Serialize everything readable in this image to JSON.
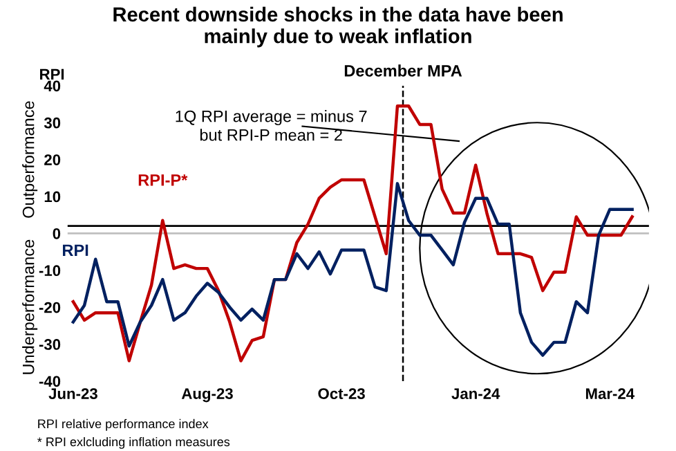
{
  "chart_data": {
    "type": "line",
    "title": "Recent downside shocks in the data have been\nmainly due to weak inflation",
    "ylabel": "RPI",
    "categories": [
      "Jun-23",
      null,
      null,
      null,
      null,
      null,
      null,
      null,
      null,
      null,
      null,
      null,
      "Aug-23",
      null,
      null,
      null,
      null,
      null,
      null,
      null,
      null,
      null,
      null,
      null,
      "Oct-23",
      null,
      null,
      null,
      null,
      null,
      null,
      null,
      null,
      null,
      null,
      null,
      "Jan-24",
      null,
      null,
      null,
      null,
      null,
      null,
      null,
      null,
      null,
      null,
      null,
      "Mar-24",
      null,
      null
    ],
    "series": [
      {
        "name": "RPI-P*",
        "color": "#c00000",
        "values": [
          -18.5,
          -23.5,
          -21.5,
          -21.5,
          -21.5,
          -34.5,
          -24,
          -14,
          3.5,
          -9.5,
          -8.5,
          -9.5,
          -9.5,
          -15.5,
          -24,
          -34.5,
          -29,
          -28,
          -12.5,
          -12.5,
          -2.5,
          2.5,
          9.5,
          12.5,
          14.5,
          14.5,
          14.5,
          4.5,
          -5.5,
          34.5,
          34.5,
          29.5,
          29.5,
          12,
          5.5,
          5.5,
          18.5,
          5.5,
          -5.5,
          -5.5,
          -5.5,
          -6.5,
          -15.5,
          -10.5,
          -10.5,
          4.5,
          -0.5,
          -0.5,
          -0.5,
          -0.5,
          4.5
        ]
      },
      {
        "name": "RPI",
        "color": "#002060",
        "values": [
          -24,
          -19.5,
          -7,
          -18.5,
          -18.5,
          -30.5,
          -24,
          -19.5,
          -12.5,
          -23.5,
          -21.5,
          -17,
          -13.5,
          -16,
          -20,
          -23.5,
          -20.5,
          -23.5,
          -12.5,
          -12.5,
          -5.5,
          -9.5,
          -5,
          -11,
          -4.5,
          -4.5,
          -4.5,
          -14.5,
          -15.5,
          13.5,
          3.5,
          -0.5,
          -0.5,
          -4.5,
          -8.5,
          3,
          9.5,
          9.5,
          2.5,
          2.5,
          -21.5,
          -29.5,
          -33,
          -29.5,
          -29.5,
          -18.5,
          -21.5,
          -0.5,
          6.5,
          6.5,
          6.5
        ]
      }
    ],
    "ylim": [
      -40,
      40
    ],
    "yticks": [
      -40,
      -30,
      -20,
      -10,
      0,
      10,
      20,
      30,
      40
    ],
    "grid": false,
    "legend": false,
    "marker": "none",
    "line_style": "solid",
    "ref_lines": [
      {
        "axis": "y",
        "value": 0,
        "color": "#bfbfbf",
        "line_style": "solid"
      },
      {
        "axis": "y",
        "value": 2,
        "color": "#000000",
        "line_style": "solid"
      }
    ],
    "annotations": [
      "Outperformance",
      "Underperformance",
      "1Q RPI average = minus 7\nbut RPI-P mean = 2",
      "RPI relative performance index",
      "* RPI exlcluding inflation measures",
      "December MPA"
    ]
  }
}
